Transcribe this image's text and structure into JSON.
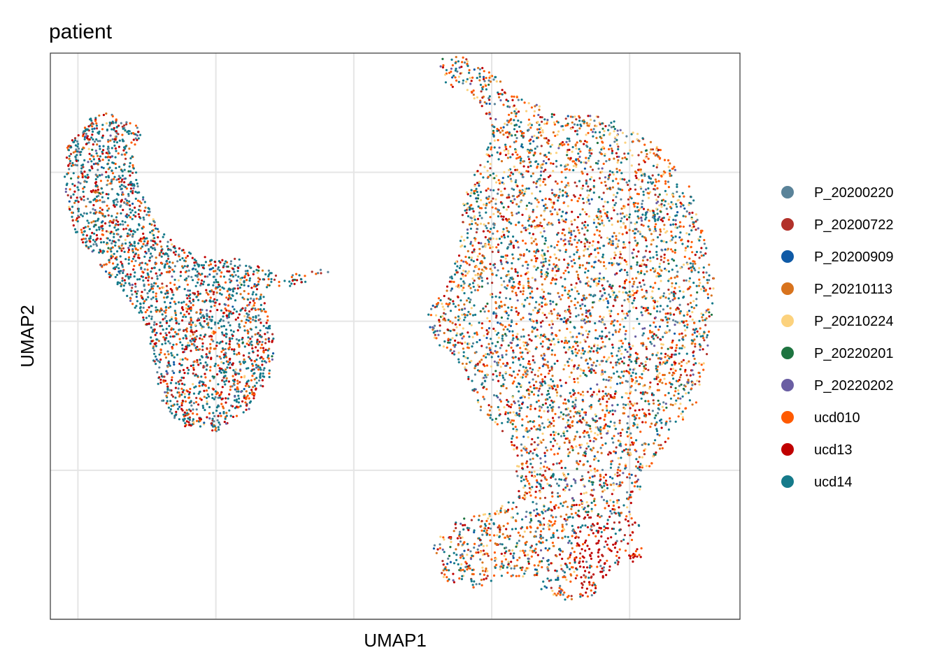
{
  "chart_data": {
    "type": "scatter",
    "title": "patient",
    "xlabel": "UMAP1",
    "ylabel": "UMAP2",
    "xlim": [
      -8,
      17
    ],
    "ylim": [
      -10,
      9
    ],
    "grid": true,
    "x_tick_labels_shown": false,
    "y_tick_labels_shown": false,
    "x_gridlines": [
      -7,
      -2,
      3,
      8,
      13
    ],
    "y_gridlines": [
      -10,
      -5,
      0,
      5
    ],
    "legend_placement": "right",
    "series": [
      {
        "name": "P_20200220",
        "color": "#5A8399"
      },
      {
        "name": "P_20200722",
        "color": "#B2312A"
      },
      {
        "name": "P_20200909",
        "color": "#0F5AA6"
      },
      {
        "name": "P_20210113",
        "color": "#D8731D"
      },
      {
        "name": "P_20210224",
        "color": "#FCD27D"
      },
      {
        "name": "P_20220201",
        "color": "#1E7440"
      },
      {
        "name": "P_20220202",
        "color": "#6A5EA3"
      },
      {
        "name": "ucd010",
        "color": "#FF5A00"
      },
      {
        "name": "ucd13",
        "color": "#C00000"
      },
      {
        "name": "ucd14",
        "color": "#157A8A"
      }
    ],
    "clusters": [
      {
        "name": "left-cluster",
        "region_polygon": [
          [
            -6.5,
            6.9
          ],
          [
            -5.8,
            7.0
          ],
          [
            -5.2,
            6.7
          ],
          [
            -4.6,
            6.5
          ],
          [
            -5.0,
            5.4
          ],
          [
            -4.7,
            4.3
          ],
          [
            -4.0,
            3.0
          ],
          [
            -2.8,
            2.2
          ],
          [
            -1.2,
            2.1
          ],
          [
            0.5,
            1.5
          ],
          [
            1.8,
            1.8
          ],
          [
            2.2,
            1.7
          ],
          [
            1.0,
            1.2
          ],
          [
            -0.3,
            1.1
          ],
          [
            -0.2,
            0.4
          ],
          [
            0.2,
            -0.5
          ],
          [
            0.0,
            -1.8
          ],
          [
            -0.8,
            -3.0
          ],
          [
            -2.0,
            -3.7
          ],
          [
            -3.3,
            -3.5
          ],
          [
            -4.0,
            -2.6
          ],
          [
            -4.3,
            -1.2
          ],
          [
            -4.5,
            -0.2
          ],
          [
            -5.2,
            0.8
          ],
          [
            -6.2,
            1.8
          ],
          [
            -7.1,
            3.0
          ],
          [
            -7.5,
            4.5
          ],
          [
            -7.4,
            6.0
          ]
        ],
        "point_count": 2400
      },
      {
        "name": "right-cluster",
        "region_polygon": [
          [
            6.0,
            8.9
          ],
          [
            7.0,
            8.9
          ],
          [
            7.9,
            8.4
          ],
          [
            8.9,
            7.6
          ],
          [
            10.5,
            6.9
          ],
          [
            12.2,
            6.9
          ],
          [
            14.0,
            5.9
          ],
          [
            15.2,
            4.5
          ],
          [
            15.8,
            2.6
          ],
          [
            16.1,
            1.3
          ],
          [
            15.9,
            -0.7
          ],
          [
            15.4,
            -2.8
          ],
          [
            14.4,
            -4.0
          ],
          [
            13.7,
            -5.0
          ],
          [
            13.0,
            -6.4
          ],
          [
            13.6,
            -7.2
          ],
          [
            13.4,
            -8.0
          ],
          [
            12.3,
            -8.3
          ],
          [
            11.8,
            -9.2
          ],
          [
            10.4,
            -9.4
          ],
          [
            9.5,
            -8.8
          ],
          [
            8.5,
            -8.5
          ],
          [
            7.5,
            -9.0
          ],
          [
            6.3,
            -8.7
          ],
          [
            5.8,
            -7.7
          ],
          [
            6.5,
            -6.7
          ],
          [
            8.0,
            -6.4
          ],
          [
            9.0,
            -5.8
          ],
          [
            8.7,
            -4.0
          ],
          [
            7.6,
            -3.0
          ],
          [
            7.0,
            -1.6
          ],
          [
            6.0,
            -0.8
          ],
          [
            5.6,
            0.2
          ],
          [
            6.2,
            1.0
          ],
          [
            6.8,
            2.2
          ],
          [
            7.0,
            4.2
          ],
          [
            7.7,
            5.6
          ],
          [
            8.0,
            6.6
          ],
          [
            7.5,
            7.4
          ],
          [
            6.3,
            8.0
          ],
          [
            6.1,
            8.6
          ]
        ],
        "point_count": 5200
      }
    ]
  }
}
